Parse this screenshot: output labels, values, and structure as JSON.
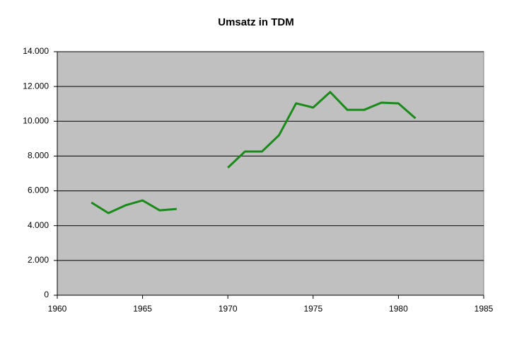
{
  "chart_data": {
    "type": "line",
    "title": "Umsatz in TDM",
    "x": [
      1962,
      1963,
      1964,
      1965,
      1966,
      1967,
      1968,
      1969,
      1970,
      1971,
      1972,
      1973,
      1974,
      1975,
      1976,
      1977,
      1978,
      1979,
      1980,
      1981
    ],
    "values": [
      5330,
      4720,
      5170,
      5450,
      4880,
      4960,
      null,
      null,
      7330,
      8260,
      8260,
      9200,
      11030,
      10790,
      11680,
      10660,
      10660,
      11070,
      11030,
      10170
    ],
    "color": "#1a8a1a",
    "xlim": [
      1960,
      1985
    ],
    "xticks": [
      1960,
      1965,
      1970,
      1975,
      1980,
      1985
    ],
    "ylim": [
      0,
      14000
    ],
    "yticks": [
      0,
      {
        "value": 2000,
        "label": "2.000"
      },
      {
        "value": 4000,
        "label": "4.000"
      },
      {
        "value": 6000,
        "label": "6.000"
      },
      {
        "value": 8000,
        "label": "8.000"
      },
      {
        "value": 10000,
        "label": "10.000"
      },
      {
        "value": 12000,
        "label": "12.000"
      },
      {
        "value": 14000,
        "label": "14.000"
      }
    ],
    "grid": true
  }
}
